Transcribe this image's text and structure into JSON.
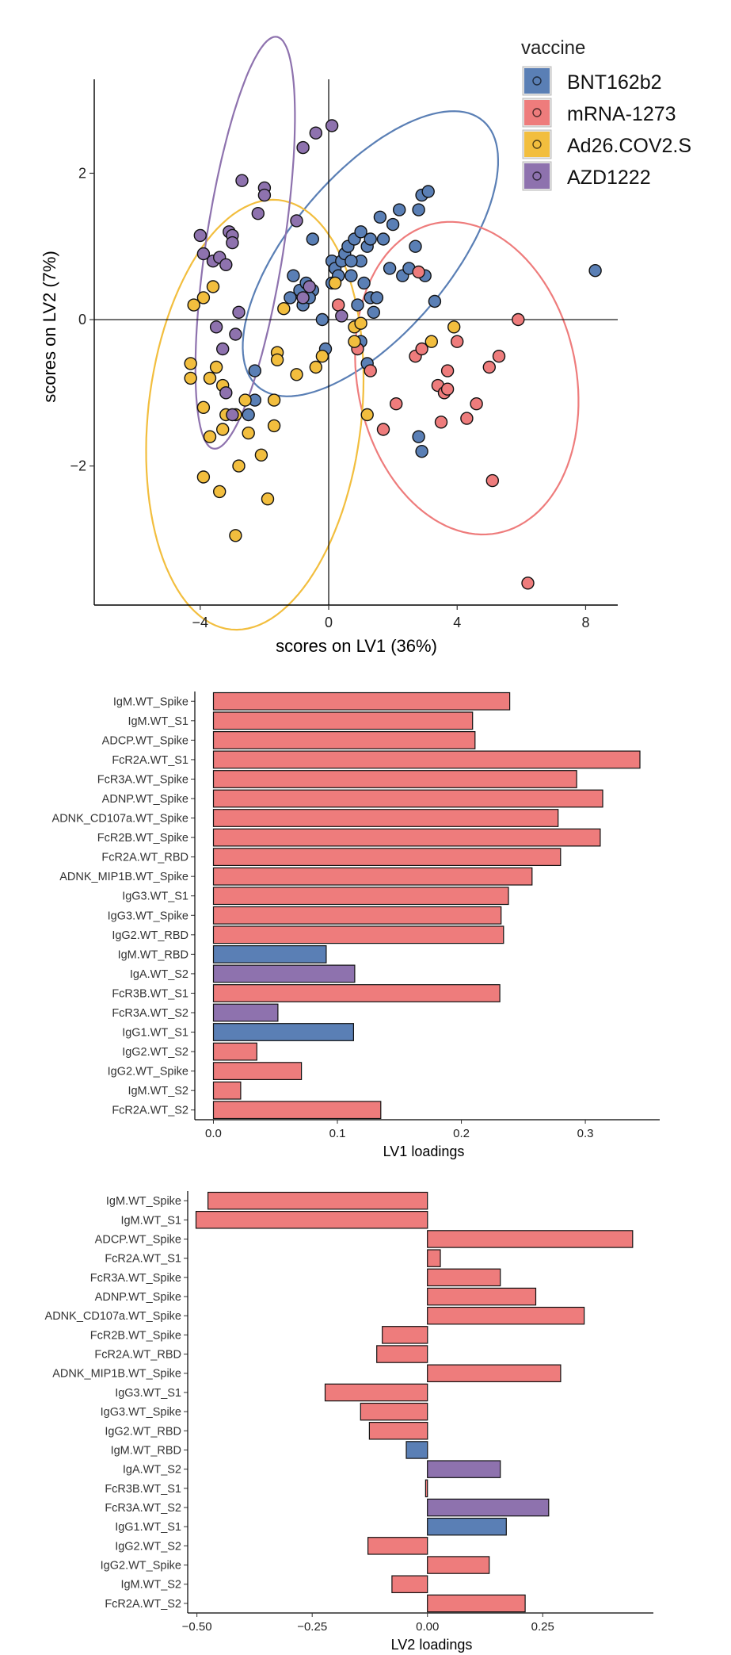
{
  "colors": {
    "BNT162b2": "#5A7FB5",
    "mRNA-1273": "#EE7C7C",
    "Ad26.COV2.S": "#F2BE3E",
    "AZD1222": "#8E72AE"
  },
  "chart_data": [
    {
      "type": "scatter",
      "xlabel": "scores on LV1 (36%)",
      "ylabel": "scores on LV2 (7%)",
      "xlim": [
        -7.3,
        9.0
      ],
      "ylim": [
        -3.9,
        3.5
      ],
      "xticks": [
        -4,
        0,
        4,
        8
      ],
      "yticks": [
        -2,
        0,
        2
      ],
      "xtick_labels": [
        "−4",
        "0",
        "4",
        "8"
      ],
      "ytick_labels": [
        "−2",
        "0",
        "2"
      ],
      "legend": {
        "title": "vaccine",
        "position": "top-right",
        "entries": [
          "BNT162b2",
          "mRNA-1273",
          "Ad26.COV2.S",
          "AZD1222"
        ]
      },
      "ellipses": [
        {
          "group": "BNT162b2",
          "cx": 1.3,
          "cy": 0.9,
          "rx": 4.2,
          "ry": 1.4,
          "angle_deg": 20
        },
        {
          "group": "mRNA-1273",
          "cx": 4.3,
          "cy": -0.8,
          "rx": 3.5,
          "ry": 2.1,
          "angle_deg": -8
        },
        {
          "group": "Ad26.COV2.S",
          "cx": -2.3,
          "cy": -1.3,
          "rx": 3.5,
          "ry": 2.8,
          "angle_deg": 25
        },
        {
          "group": "AZD1222",
          "cx": -2.6,
          "cy": 1.05,
          "rx": 3.0,
          "ry": 1.15,
          "angle_deg": 68
        }
      ],
      "series": [
        {
          "name": "BNT162b2",
          "points": [
            [
              -2.3,
              -0.7
            ],
            [
              -2.3,
              -1.1
            ],
            [
              -2.5,
              -1.3
            ],
            [
              -1.1,
              0.6
            ],
            [
              -1.2,
              0.3
            ],
            [
              -0.9,
              0.4
            ],
            [
              -0.8,
              0.2
            ],
            [
              -0.7,
              0.5
            ],
            [
              -0.5,
              0.4
            ],
            [
              -0.6,
              0.3
            ],
            [
              -0.5,
              1.1
            ],
            [
              -0.2,
              0.0
            ],
            [
              -0.1,
              -0.4
            ],
            [
              0.1,
              0.8
            ],
            [
              0.2,
              0.7
            ],
            [
              0.3,
              0.6
            ],
            [
              0.4,
              0.8
            ],
            [
              0.5,
              0.9
            ],
            [
              0.6,
              1.0
            ],
            [
              0.7,
              0.6
            ],
            [
              0.8,
              1.1
            ],
            [
              1.0,
              1.2
            ],
            [
              1.0,
              0.8
            ],
            [
              1.1,
              0.5
            ],
            [
              1.2,
              1.0
            ],
            [
              1.3,
              1.1
            ],
            [
              1.3,
              0.3
            ],
            [
              1.4,
              0.1
            ],
            [
              1.5,
              0.3
            ],
            [
              1.6,
              1.4
            ],
            [
              1.7,
              1.1
            ],
            [
              1.9,
              0.7
            ],
            [
              2.0,
              1.3
            ],
            [
              2.2,
              1.5
            ],
            [
              2.3,
              0.6
            ],
            [
              2.5,
              0.7
            ],
            [
              2.7,
              1.0
            ],
            [
              2.8,
              1.5
            ],
            [
              2.9,
              1.7
            ],
            [
              3.1,
              1.75
            ],
            [
              3.0,
              0.6
            ],
            [
              3.3,
              0.25
            ],
            [
              1.2,
              -0.6
            ],
            [
              1.0,
              -0.3
            ],
            [
              2.8,
              -1.6
            ],
            [
              2.9,
              -1.8
            ],
            [
              8.3,
              0.67
            ],
            [
              0.7,
              0.8
            ],
            [
              0.9,
              0.2
            ],
            [
              0.1,
              0.5
            ]
          ]
        },
        {
          "name": "mRNA-1273",
          "points": [
            [
              0.9,
              -0.4
            ],
            [
              1.3,
              -0.7
            ],
            [
              2.1,
              -1.15
            ],
            [
              1.7,
              -1.5
            ],
            [
              2.7,
              -0.5
            ],
            [
              2.9,
              -0.4
            ],
            [
              3.4,
              -0.9
            ],
            [
              3.6,
              -1.0
            ],
            [
              3.7,
              -0.7
            ],
            [
              4.0,
              -0.3
            ],
            [
              3.5,
              -1.4
            ],
            [
              4.3,
              -1.35
            ],
            [
              4.6,
              -1.15
            ],
            [
              5.0,
              -0.65
            ],
            [
              5.3,
              -0.5
            ],
            [
              5.9,
              0.0
            ],
            [
              5.1,
              -2.2
            ],
            [
              6.2,
              -3.6
            ],
            [
              3.7,
              -0.95
            ],
            [
              0.3,
              0.2
            ],
            [
              2.8,
              0.65
            ]
          ]
        },
        {
          "name": "Ad26.COV2.S",
          "points": [
            [
              -4.3,
              -0.6
            ],
            [
              -4.3,
              -0.8
            ],
            [
              -4.2,
              0.2
            ],
            [
              -3.9,
              0.3
            ],
            [
              -3.9,
              -1.2
            ],
            [
              -3.7,
              -0.8
            ],
            [
              -3.5,
              -0.65
            ],
            [
              -3.3,
              -0.9
            ],
            [
              -3.7,
              -1.6
            ],
            [
              -3.9,
              -2.15
            ],
            [
              -3.4,
              -2.35
            ],
            [
              -3.3,
              -1.5
            ],
            [
              -3.2,
              -1.3
            ],
            [
              -2.9,
              -1.3
            ],
            [
              -2.6,
              -1.1
            ],
            [
              -2.5,
              -1.55
            ],
            [
              -2.8,
              -2.0
            ],
            [
              -2.1,
              -1.85
            ],
            [
              -1.9,
              -2.45
            ],
            [
              -1.7,
              -1.1
            ],
            [
              -1.7,
              -1.45
            ],
            [
              -1.4,
              0.15
            ],
            [
              -1.6,
              -0.45
            ],
            [
              -1.6,
              -0.55
            ],
            [
              -1.0,
              -0.75
            ],
            [
              -0.4,
              -0.65
            ],
            [
              -0.2,
              -0.5
            ],
            [
              0.2,
              0.5
            ],
            [
              0.8,
              -0.1
            ],
            [
              1.0,
              -0.05
            ],
            [
              0.8,
              -0.3
            ],
            [
              3.2,
              -0.3
            ],
            [
              3.9,
              -0.1
            ],
            [
              1.2,
              -1.3
            ],
            [
              -3.6,
              0.45
            ],
            [
              -2.9,
              -2.95
            ]
          ]
        },
        {
          "name": "AZD1222",
          "points": [
            [
              -4.0,
              1.15
            ],
            [
              -3.9,
              0.9
            ],
            [
              -3.6,
              0.8
            ],
            [
              -3.4,
              0.85
            ],
            [
              -3.2,
              0.75
            ],
            [
              -3.1,
              1.2
            ],
            [
              -3.0,
              1.15
            ],
            [
              -3.0,
              1.05
            ],
            [
              -2.7,
              1.9
            ],
            [
              -2.2,
              1.45
            ],
            [
              -2.0,
              1.8
            ],
            [
              -2.0,
              1.7
            ],
            [
              -2.8,
              0.1
            ],
            [
              -3.5,
              -0.1
            ],
            [
              -3.3,
              -0.4
            ],
            [
              -2.9,
              -0.2
            ],
            [
              -3.0,
              -1.3
            ],
            [
              -1.0,
              1.35
            ],
            [
              -0.8,
              2.35
            ],
            [
              -0.4,
              2.55
            ],
            [
              0.1,
              2.65
            ],
            [
              -0.6,
              0.45
            ],
            [
              -0.8,
              0.3
            ],
            [
              0.4,
              0.05
            ],
            [
              -3.2,
              -1.0
            ]
          ]
        }
      ]
    },
    {
      "type": "bar",
      "orientation": "horizontal",
      "xlabel": "LV1 loadings",
      "xlim": [
        -0.015,
        0.36
      ],
      "xticks": [
        0.0,
        0.1,
        0.2,
        0.3
      ],
      "xtick_labels": [
        "0.0",
        "0.1",
        "0.2",
        "0.3"
      ],
      "categories": [
        "IgM.WT_Spike",
        "IgM.WT_S1",
        "ADCP.WT_Spike",
        "FcR2A.WT_S1",
        "FcR3A.WT_Spike",
        "ADNP.WT_Spike",
        "ADNK_CD107a.WT_Spike",
        "FcR2B.WT_Spike",
        "FcR2A.WT_RBD",
        "ADNK_MIP1B.WT_Spike",
        "IgG3.WT_S1",
        "IgG3.WT_Spike",
        "IgG2.WT_RBD",
        "IgM.WT_RBD",
        "IgA.WT_S2",
        "FcR3B.WT_S1",
        "FcR3A.WT_S2",
        "IgG1.WT_S1",
        "IgG2.WT_S2",
        "IgG2.WT_Spike",
        "IgM.WT_S2",
        "FcR2A.WT_S2"
      ],
      "values": [
        0.239,
        0.209,
        0.211,
        0.344,
        0.293,
        0.314,
        0.278,
        0.312,
        0.28,
        0.257,
        0.238,
        0.232,
        0.234,
        0.091,
        0.114,
        0.231,
        0.052,
        0.113,
        0.035,
        0.071,
        0.022,
        0.135
      ],
      "groups": [
        "mRNA-1273",
        "mRNA-1273",
        "mRNA-1273",
        "mRNA-1273",
        "mRNA-1273",
        "mRNA-1273",
        "mRNA-1273",
        "mRNA-1273",
        "mRNA-1273",
        "mRNA-1273",
        "mRNA-1273",
        "mRNA-1273",
        "mRNA-1273",
        "BNT162b2",
        "AZD1222",
        "mRNA-1273",
        "AZD1222",
        "BNT162b2",
        "mRNA-1273",
        "mRNA-1273",
        "mRNA-1273",
        "mRNA-1273"
      ]
    },
    {
      "type": "bar",
      "orientation": "horizontal",
      "xlabel": "LV2 loadings",
      "xlim": [
        -0.52,
        0.49
      ],
      "xticks": [
        -0.5,
        -0.25,
        0.0,
        0.25
      ],
      "xtick_labels": [
        "−0.50",
        "−0.25",
        "0.00",
        "0.25"
      ],
      "categories": [
        "IgM.WT_Spike",
        "IgM.WT_S1",
        "ADCP.WT_Spike",
        "FcR2A.WT_S1",
        "FcR3A.WT_Spike",
        "ADNP.WT_Spike",
        "ADNK_CD107a.WT_Spike",
        "FcR2B.WT_Spike",
        "FcR2A.WT_RBD",
        "ADNK_MIP1B.WT_Spike",
        "IgG3.WT_S1",
        "IgG3.WT_Spike",
        "IgG2.WT_RBD",
        "IgM.WT_RBD",
        "IgA.WT_S2",
        "FcR3B.WT_S1",
        "FcR3A.WT_S2",
        "IgG1.WT_S1",
        "IgG2.WT_S2",
        "IgG2.WT_Spike",
        "IgM.WT_S2",
        "FcR2A.WT_S2"
      ],
      "values": [
        -0.476,
        -0.502,
        0.445,
        0.028,
        0.158,
        0.235,
        0.34,
        -0.098,
        -0.11,
        0.289,
        -0.222,
        -0.145,
        -0.126,
        -0.046,
        0.158,
        -0.004,
        0.263,
        0.171,
        -0.129,
        0.134,
        -0.077,
        0.212
      ],
      "groups": [
        "mRNA-1273",
        "mRNA-1273",
        "mRNA-1273",
        "mRNA-1273",
        "mRNA-1273",
        "mRNA-1273",
        "mRNA-1273",
        "mRNA-1273",
        "mRNA-1273",
        "mRNA-1273",
        "mRNA-1273",
        "mRNA-1273",
        "mRNA-1273",
        "BNT162b2",
        "AZD1222",
        "mRNA-1273",
        "AZD1222",
        "BNT162b2",
        "mRNA-1273",
        "mRNA-1273",
        "mRNA-1273",
        "mRNA-1273"
      ]
    }
  ]
}
